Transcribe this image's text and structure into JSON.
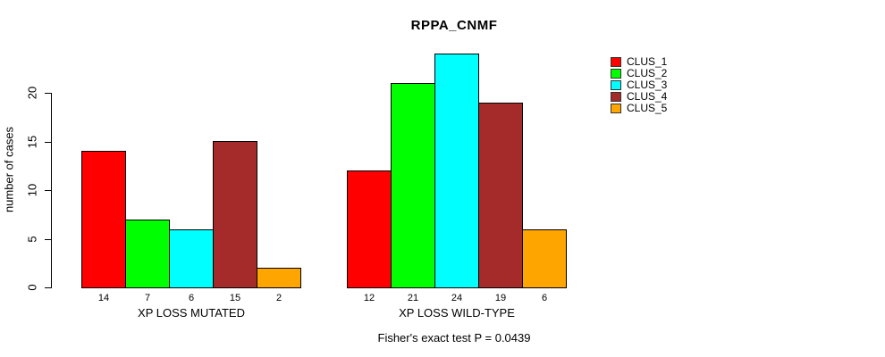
{
  "chart_data": {
    "type": "bar",
    "title": "RPPA_CNMF",
    "ylabel": "number of cases",
    "xlabel": "",
    "ylim": [
      0,
      20
    ],
    "yticks": [
      0,
      5,
      10,
      15,
      20
    ],
    "grid": false,
    "legend_position": "right-outside-top",
    "categories": [
      "XP LOSS MUTATED",
      "XP LOSS WILD-TYPE"
    ],
    "series": [
      {
        "name": "CLUS_1",
        "color": "#FF0000",
        "values": [
          14,
          12
        ]
      },
      {
        "name": "CLUS_2",
        "color": "#00FF00",
        "values": [
          7,
          21
        ]
      },
      {
        "name": "CLUS_3",
        "color": "#00FFFF",
        "values": [
          6,
          24
        ]
      },
      {
        "name": "CLUS_4",
        "color": "#A52A2A",
        "values": [
          15,
          19
        ]
      },
      {
        "name": "CLUS_5",
        "color": "#FFA500",
        "values": [
          2,
          6
        ]
      }
    ],
    "value_labels_shown": true,
    "footnote": "Fisher's exact test P = 0.0439",
    "axis_color": "#000000",
    "background_color": "#FFFFFF"
  }
}
